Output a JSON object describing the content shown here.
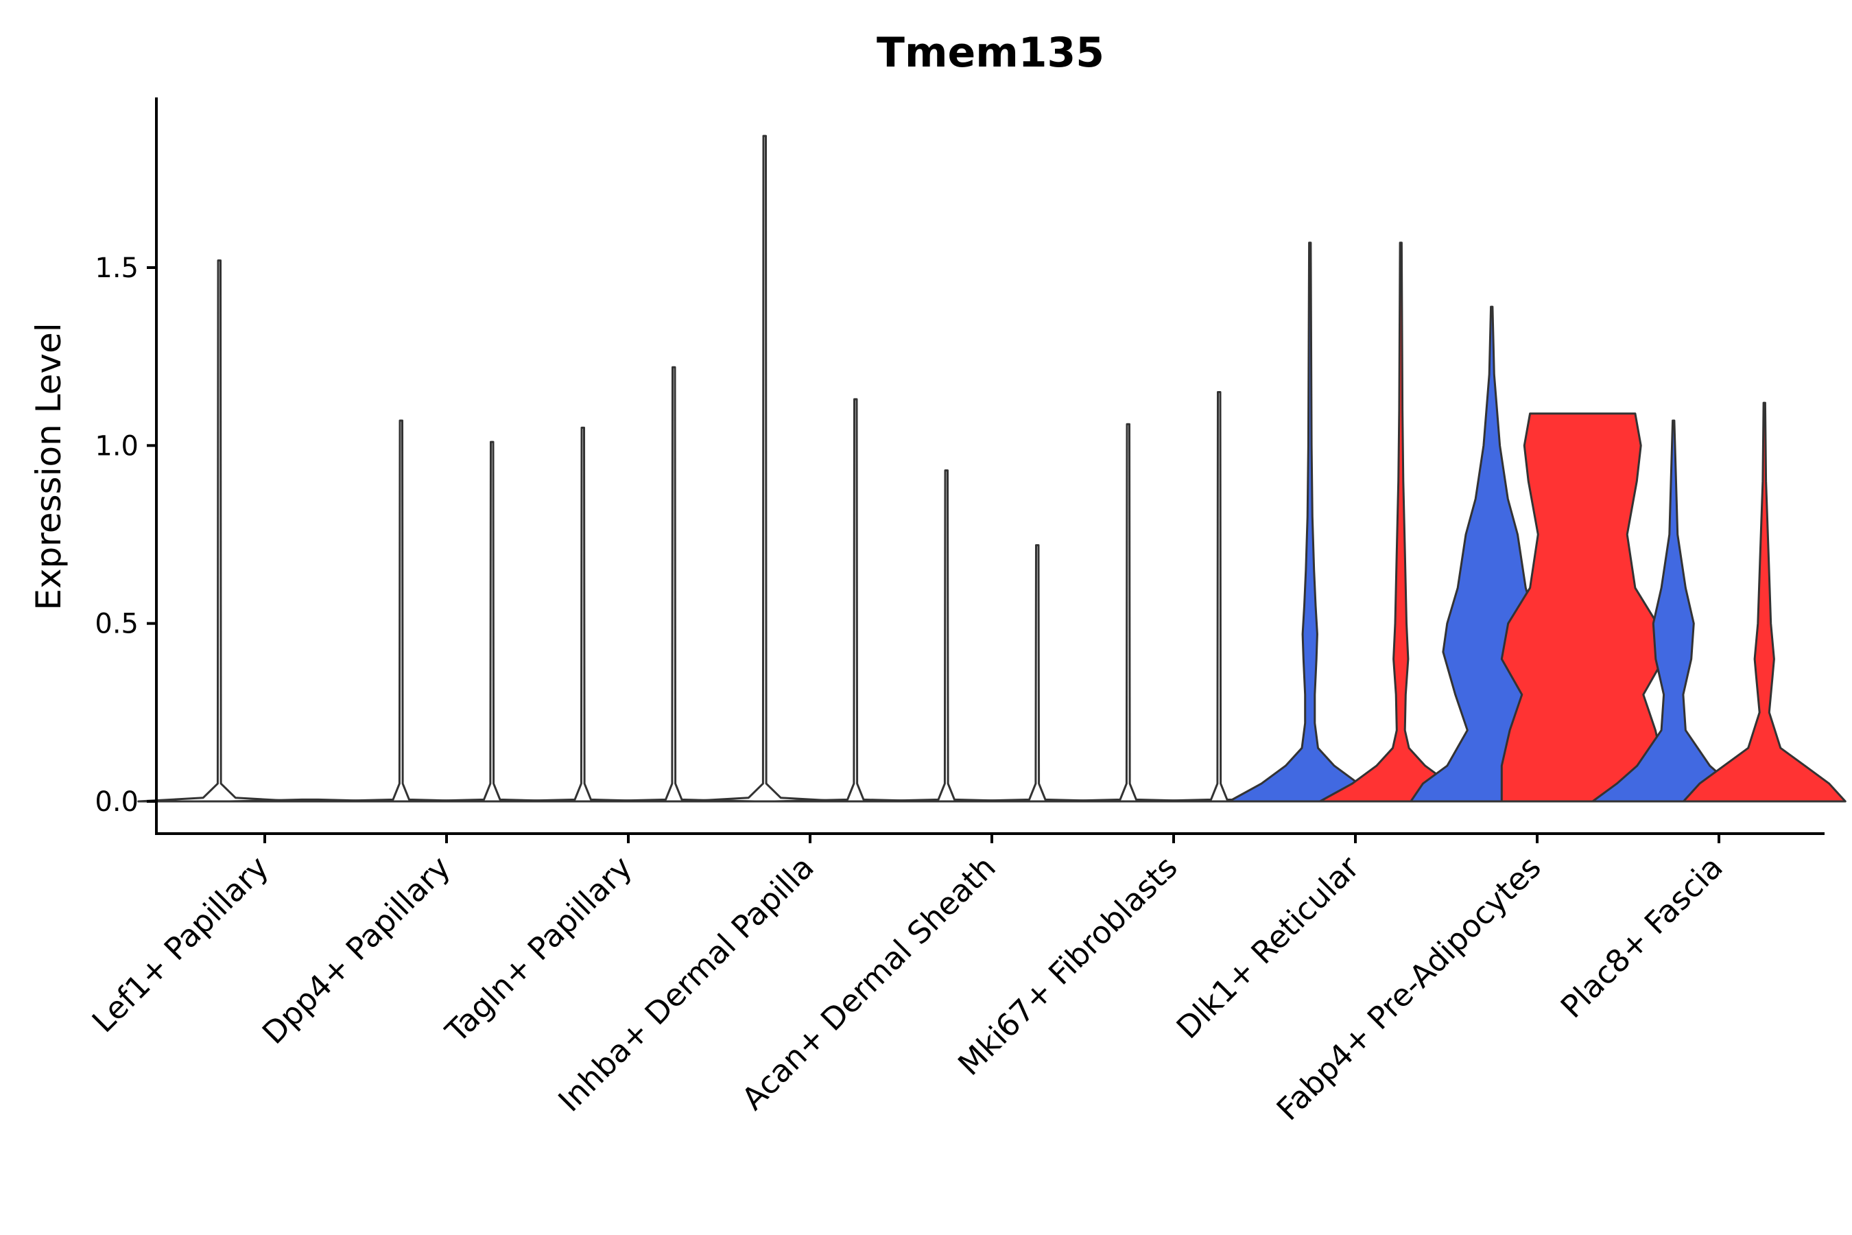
{
  "chart_data": {
    "type": "violin",
    "title": "Tmem135",
    "xlabel": "",
    "ylabel": "Expression Level",
    "ylim": [
      -0.1,
      1.95
    ],
    "yticks": [
      0.0,
      0.5,
      1.0,
      1.5
    ],
    "ytick_labels": [
      "0.0",
      "0.5",
      "1.0",
      "1.5"
    ],
    "categories": [
      "Lef1+ Papillary",
      "Dpp4+ Papillary",
      "Tagln+ Papillary",
      "Inhba+ Dermal Papilla",
      "Acan+ Dermal Sheath",
      "Mki67+ Fibroblasts",
      "Dlk1+ Reticular",
      "Fabp4+ Pre-Adipocytes",
      "Plac8+ Fascia"
    ],
    "group_colors": [
      "#4169E1",
      "#FF3333"
    ],
    "violins": [
      {
        "category": 0,
        "group": 0,
        "max": 1.52,
        "filled": false,
        "density": [
          [
            0,
            1
          ],
          [
            0.01,
            0.2
          ],
          [
            0.05,
            0.02
          ],
          [
            1.52,
            0.015
          ]
        ]
      },
      {
        "category": 0,
        "group": 1,
        "max": 0.0,
        "filled": false,
        "density": [
          [
            0,
            1
          ],
          [
            0.005,
            0.1
          ]
        ]
      },
      {
        "category": 1,
        "group": 0,
        "max": 1.07,
        "filled": false,
        "density": [
          [
            0,
            1
          ],
          [
            0.005,
            0.1
          ],
          [
            0.05,
            0.02
          ],
          [
            1.07,
            0.015
          ]
        ]
      },
      {
        "category": 1,
        "group": 1,
        "max": 1.01,
        "filled": false,
        "density": [
          [
            0,
            1
          ],
          [
            0.005,
            0.1
          ],
          [
            0.05,
            0.02
          ],
          [
            1.01,
            0.015
          ]
        ]
      },
      {
        "category": 2,
        "group": 0,
        "max": 1.05,
        "filled": false,
        "density": [
          [
            0,
            1
          ],
          [
            0.005,
            0.1
          ],
          [
            0.05,
            0.02
          ],
          [
            1.05,
            0.015
          ]
        ]
      },
      {
        "category": 2,
        "group": 1,
        "max": 1.22,
        "filled": false,
        "density": [
          [
            0,
            1
          ],
          [
            0.005,
            0.1
          ],
          [
            0.05,
            0.02
          ],
          [
            1.22,
            0.015
          ]
        ]
      },
      {
        "category": 3,
        "group": 0,
        "max": 1.87,
        "filled": false,
        "density": [
          [
            0,
            1
          ],
          [
            0.01,
            0.2
          ],
          [
            0.05,
            0.02
          ],
          [
            1.87,
            0.015
          ]
        ]
      },
      {
        "category": 3,
        "group": 1,
        "max": 1.13,
        "filled": false,
        "density": [
          [
            0,
            1
          ],
          [
            0.005,
            0.1
          ],
          [
            0.05,
            0.02
          ],
          [
            1.13,
            0.015
          ]
        ]
      },
      {
        "category": 4,
        "group": 0,
        "max": 0.93,
        "filled": false,
        "density": [
          [
            0,
            1
          ],
          [
            0.005,
            0.1
          ],
          [
            0.05,
            0.02
          ],
          [
            0.93,
            0.015
          ]
        ]
      },
      {
        "category": 4,
        "group": 1,
        "max": 0.72,
        "filled": false,
        "density": [
          [
            0,
            1
          ],
          [
            0.005,
            0.1
          ],
          [
            0.05,
            0.02
          ],
          [
            0.72,
            0.015
          ]
        ]
      },
      {
        "category": 5,
        "group": 0,
        "max": 1.06,
        "filled": false,
        "density": [
          [
            0,
            1
          ],
          [
            0.005,
            0.1
          ],
          [
            0.05,
            0.02
          ],
          [
            1.06,
            0.015
          ]
        ]
      },
      {
        "category": 5,
        "group": 1,
        "max": 1.15,
        "filled": false,
        "density": [
          [
            0,
            1
          ],
          [
            0.005,
            0.1
          ],
          [
            0.05,
            0.02
          ],
          [
            1.15,
            0.015
          ]
        ]
      },
      {
        "category": 6,
        "group": 0,
        "max": 1.57,
        "filled": true,
        "density": [
          [
            0,
            1
          ],
          [
            0.05,
            0.6
          ],
          [
            0.1,
            0.3
          ],
          [
            0.15,
            0.1
          ],
          [
            0.22,
            0.06
          ],
          [
            0.3,
            0.06
          ],
          [
            0.4,
            0.08
          ],
          [
            0.47,
            0.09
          ],
          [
            0.55,
            0.07
          ],
          [
            0.65,
            0.05
          ],
          [
            0.8,
            0.03
          ],
          [
            1.0,
            0.02
          ],
          [
            1.57,
            0.01
          ]
        ]
      },
      {
        "category": 6,
        "group": 1,
        "max": 1.57,
        "filled": true,
        "density": [
          [
            0,
            1
          ],
          [
            0.05,
            0.6
          ],
          [
            0.1,
            0.3
          ],
          [
            0.15,
            0.1
          ],
          [
            0.2,
            0.05
          ],
          [
            0.3,
            0.06
          ],
          [
            0.4,
            0.09
          ],
          [
            0.5,
            0.07
          ],
          [
            0.7,
            0.05
          ],
          [
            0.9,
            0.03
          ],
          [
            1.1,
            0.02
          ],
          [
            1.57,
            0.01
          ]
        ]
      },
      {
        "category": 7,
        "group": 0,
        "max": 1.39,
        "filled": true,
        "density": [
          [
            0,
            1
          ],
          [
            0.05,
            0.85
          ],
          [
            0.1,
            0.55
          ],
          [
            0.2,
            0.3
          ],
          [
            0.3,
            0.45
          ],
          [
            0.42,
            0.6
          ],
          [
            0.5,
            0.55
          ],
          [
            0.6,
            0.42
          ],
          [
            0.75,
            0.32
          ],
          [
            0.85,
            0.2
          ],
          [
            1.0,
            0.1
          ],
          [
            1.2,
            0.03
          ],
          [
            1.39,
            0.01
          ]
        ]
      },
      {
        "category": 7,
        "group": 1,
        "max": 1.09,
        "filled": true,
        "density": [
          [
            0,
            1
          ],
          [
            0.1,
            1
          ],
          [
            0.2,
            0.9
          ],
          [
            0.3,
            0.75
          ],
          [
            0.4,
            1
          ],
          [
            0.5,
            0.92
          ],
          [
            0.6,
            0.65
          ],
          [
            0.75,
            0.55
          ],
          [
            0.9,
            0.67
          ],
          [
            1.0,
            0.72
          ],
          [
            1.09,
            0.65
          ]
        ]
      },
      {
        "category": 8,
        "group": 0,
        "max": 1.07,
        "filled": true,
        "density": [
          [
            0,
            1
          ],
          [
            0.05,
            0.7
          ],
          [
            0.1,
            0.45
          ],
          [
            0.2,
            0.15
          ],
          [
            0.3,
            0.12
          ],
          [
            0.4,
            0.22
          ],
          [
            0.5,
            0.25
          ],
          [
            0.6,
            0.15
          ],
          [
            0.75,
            0.05
          ],
          [
            1.07,
            0.01
          ]
        ]
      },
      {
        "category": 8,
        "group": 1,
        "max": 1.12,
        "filled": true,
        "density": [
          [
            0,
            1
          ],
          [
            0.05,
            0.8
          ],
          [
            0.1,
            0.5
          ],
          [
            0.15,
            0.2
          ],
          [
            0.25,
            0.06
          ],
          [
            0.35,
            0.1
          ],
          [
            0.4,
            0.12
          ],
          [
            0.5,
            0.08
          ],
          [
            0.7,
            0.05
          ],
          [
            0.9,
            0.02
          ],
          [
            1.12,
            0.01
          ]
        ]
      }
    ]
  }
}
